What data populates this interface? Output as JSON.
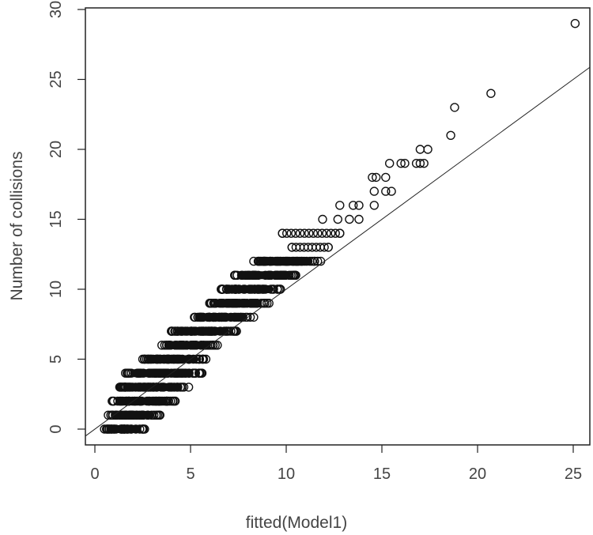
{
  "chart_data": {
    "type": "scatter",
    "title": "",
    "xlabel": "fitted(Model1)",
    "ylabel": "Number of collisions",
    "xlim": [
      -0.5,
      26
    ],
    "ylim": [
      -1.3,
      30
    ],
    "xticks": [
      0,
      5,
      10,
      15,
      20,
      25
    ],
    "yticks": [
      0,
      5,
      10,
      15,
      20,
      25,
      30
    ],
    "grid": false,
    "legend": null,
    "marker": "open-circle",
    "reference_line": {
      "type": "abline",
      "intercept": 0,
      "slope": 1,
      "description": "identity line y = x"
    },
    "rows": [
      {
        "y": 0,
        "x_min": 0.5,
        "x_max": 2.6,
        "dense": true
      },
      {
        "y": 1,
        "x_min": 0.7,
        "x_max": 3.4,
        "dense": true
      },
      {
        "y": 2,
        "x_min": 0.9,
        "x_max": 4.2,
        "dense": true
      },
      {
        "y": 3,
        "x_min": 1.3,
        "x_max": 4.9,
        "dense": true
      },
      {
        "y": 4,
        "x_min": 1.6,
        "x_max": 5.6,
        "dense": true
      },
      {
        "y": 5,
        "x_min": 2.5,
        "x_max": 5.8,
        "dense": true
      },
      {
        "y": 6,
        "x_min": 3.5,
        "x_max": 6.4,
        "dense": true
      },
      {
        "y": 7,
        "x_min": 4.0,
        "x_max": 7.4,
        "dense": true
      },
      {
        "y": 8,
        "x_min": 5.2,
        "x_max": 8.3,
        "dense": true
      },
      {
        "y": 9,
        "x_min": 6.0,
        "x_max": 9.1,
        "dense": true
      },
      {
        "y": 10,
        "x_min": 6.6,
        "x_max": 9.7,
        "dense": true
      },
      {
        "y": 11,
        "x_min": 7.3,
        "x_max": 10.5,
        "dense": true
      },
      {
        "y": 12,
        "x_min": 8.3,
        "x_max": 11.8,
        "dense": true
      },
      {
        "y": 13,
        "x_min": 10.3,
        "x_max": 12.2,
        "dense": false
      },
      {
        "y": 14,
        "x_min": 9.8,
        "x_max": 12.8,
        "dense": false
      }
    ],
    "points": [
      {
        "x": 11.9,
        "y": 15
      },
      {
        "x": 12.7,
        "y": 15
      },
      {
        "x": 13.3,
        "y": 15
      },
      {
        "x": 13.8,
        "y": 15
      },
      {
        "x": 12.8,
        "y": 16
      },
      {
        "x": 13.5,
        "y": 16
      },
      {
        "x": 13.8,
        "y": 16
      },
      {
        "x": 14.6,
        "y": 16
      },
      {
        "x": 14.6,
        "y": 17
      },
      {
        "x": 15.2,
        "y": 17
      },
      {
        "x": 15.5,
        "y": 17
      },
      {
        "x": 14.5,
        "y": 18
      },
      {
        "x": 14.7,
        "y": 18
      },
      {
        "x": 15.2,
        "y": 18
      },
      {
        "x": 15.4,
        "y": 19
      },
      {
        "x": 16.0,
        "y": 19
      },
      {
        "x": 16.2,
        "y": 19
      },
      {
        "x": 16.8,
        "y": 19
      },
      {
        "x": 17.0,
        "y": 19
      },
      {
        "x": 17.2,
        "y": 19
      },
      {
        "x": 17.0,
        "y": 20
      },
      {
        "x": 17.4,
        "y": 20
      },
      {
        "x": 18.6,
        "y": 21
      },
      {
        "x": 18.8,
        "y": 23
      },
      {
        "x": 20.7,
        "y": 24
      },
      {
        "x": 25.1,
        "y": 29
      }
    ]
  },
  "axes": {
    "x_tick_labels": [
      "0",
      "5",
      "10",
      "15",
      "20",
      "25"
    ],
    "y_tick_labels": [
      "0",
      "5",
      "10",
      "15",
      "20",
      "25",
      "30"
    ]
  }
}
